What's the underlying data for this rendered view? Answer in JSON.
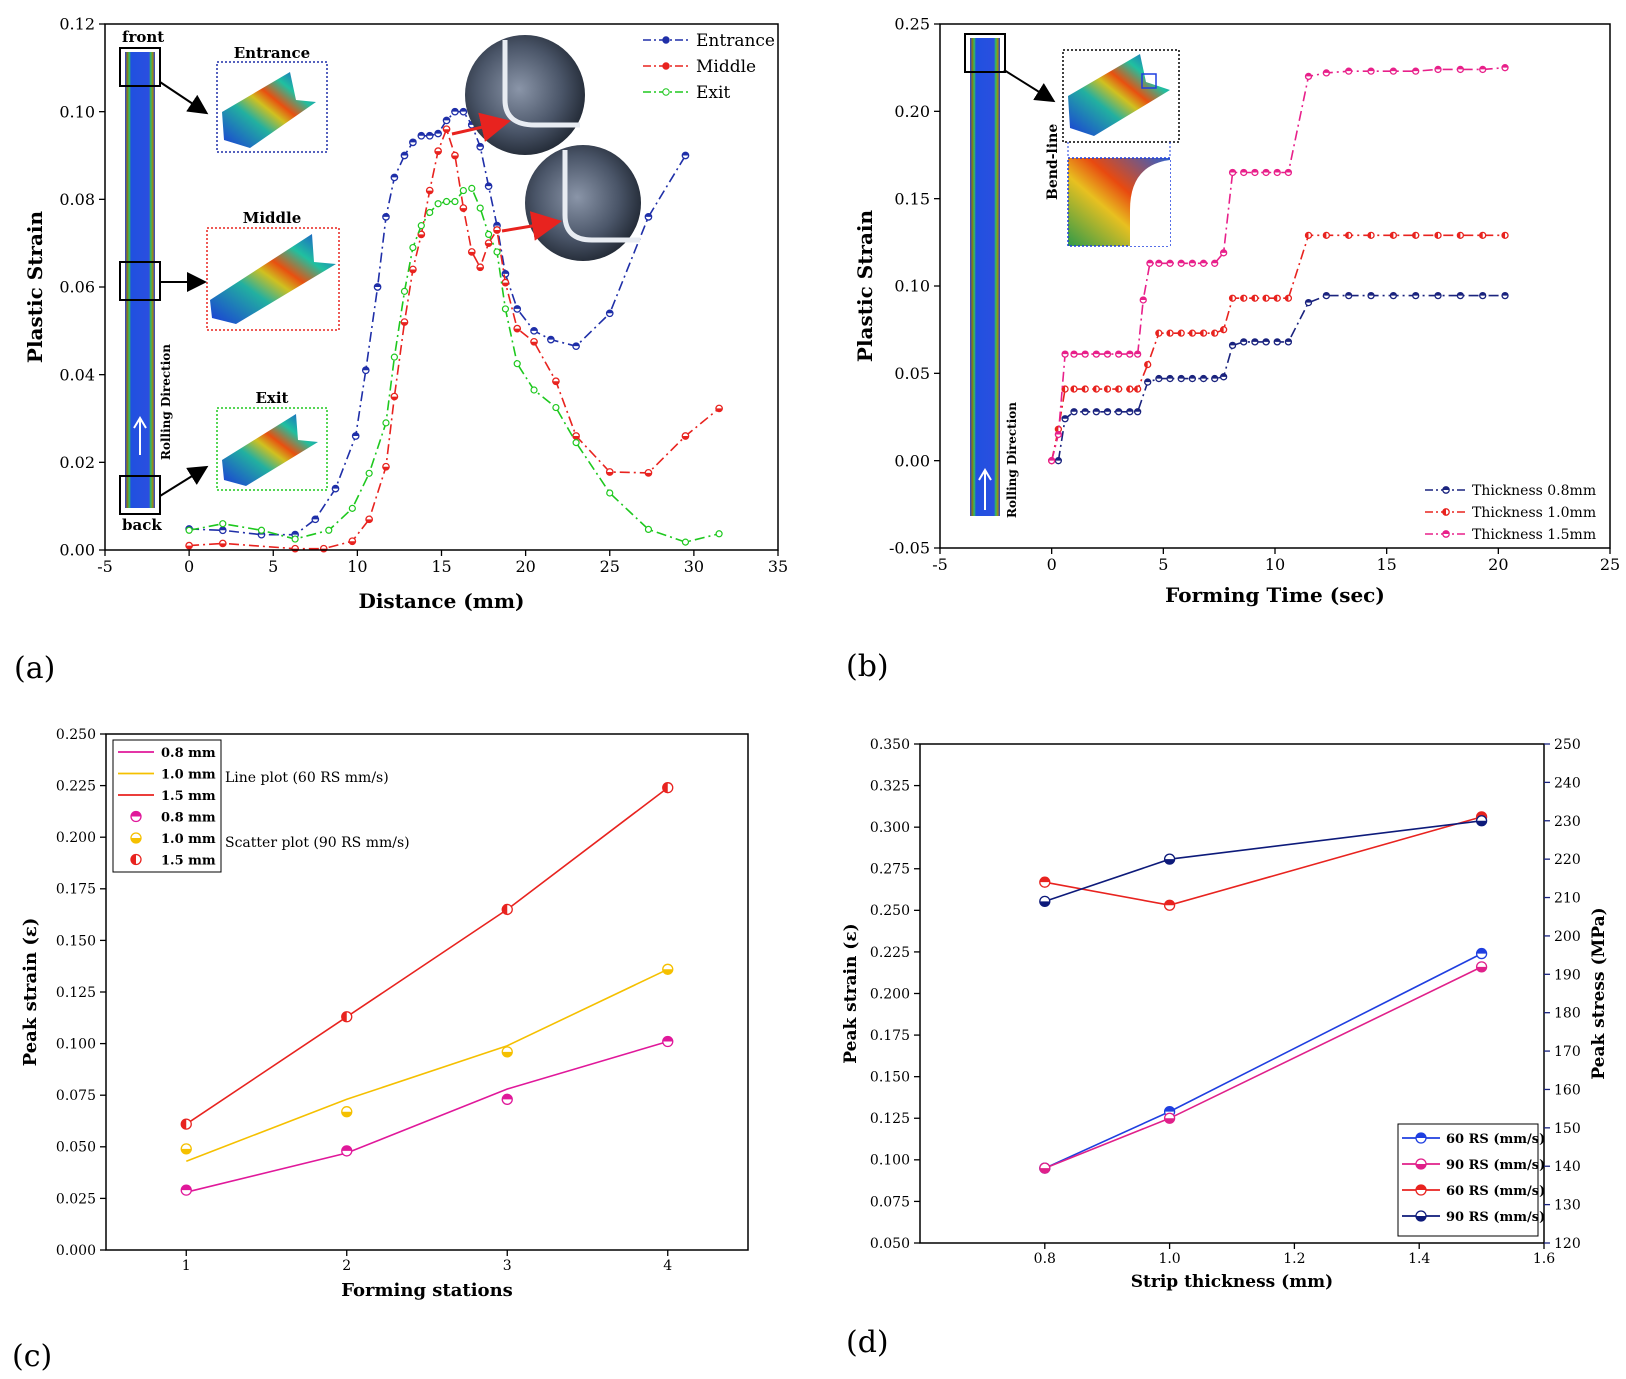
{
  "panel_labels": [
    "(a)",
    "(b)",
    "(c)",
    "(d)"
  ],
  "colors": {
    "entrance": "#1f2fa8",
    "middle": "#e8231f",
    "exit": "#1ec81e",
    "t08": "#1a237e",
    "t10": "#e8231f",
    "t15": "#e8208a",
    "c08": "#e0189a",
    "c10": "#f5c000",
    "c15": "#e8231f",
    "d_blue": "#1f3fe0",
    "d_pink": "#e0208a",
    "d_red": "#e8231f",
    "d_navy": "#0d1a7a"
  },
  "annotations_a": {
    "front": "front",
    "back": "back",
    "rolling": "Rolling Direction",
    "entrance_box": "Entrance",
    "middle_box": "Middle",
    "exit_box": "Exit"
  },
  "annotations_b": {
    "rolling": "Rolling Direction",
    "bendline": "Bend-line"
  },
  "legend_c_notes": {
    "line": "Line plot (60 RS mm/s)",
    "scatter": "Scatter plot (90 RS mm/s)"
  },
  "chart_data": [
    {
      "id": "a",
      "type": "line",
      "xlabel": "Distance (mm)",
      "ylabel": "Plastic Strain",
      "xlim": [
        -5,
        35
      ],
      "ylim": [
        0,
        0.12
      ],
      "xticks": [
        "-5",
        "0",
        "5",
        "10",
        "15",
        "20",
        "25",
        "30",
        "35"
      ],
      "yticks": [
        "0.00",
        "0.02",
        "0.04",
        "0.06",
        "0.08",
        "0.10",
        "0.12"
      ],
      "series": [
        {
          "name": "Entrance",
          "x": [
            0,
            2,
            4.3,
            6.3,
            7.5,
            8.7,
            9.9,
            10.5,
            11.2,
            11.7,
            12.2,
            12.8,
            13.3,
            13.8,
            14.3,
            14.8,
            15.3,
            15.8,
            16.3,
            16.8,
            17.3,
            17.8,
            18.3,
            18.8,
            19.5,
            20.5,
            21.5,
            23,
            25,
            27.3,
            29.5
          ],
          "y": [
            0.0048,
            0.0045,
            0.0035,
            0.0035,
            0.007,
            0.014,
            0.026,
            0.041,
            0.06,
            0.076,
            0.085,
            0.09,
            0.093,
            0.0945,
            0.0945,
            0.095,
            0.098,
            0.1,
            0.1,
            0.097,
            0.092,
            0.083,
            0.074,
            0.063,
            0.055,
            0.05,
            0.048,
            0.0465,
            0.054,
            0.076,
            0.09
          ]
        },
        {
          "name": "Middle",
          "x": [
            0,
            2,
            6.3,
            8,
            9.7,
            10.7,
            11.7,
            12.2,
            12.8,
            13.3,
            13.8,
            14.3,
            14.8,
            15.3,
            15.8,
            16.3,
            16.8,
            17.3,
            17.8,
            18.3,
            18.8,
            19.5,
            20.5,
            21.8,
            23,
            25,
            27.3,
            29.5,
            31.5
          ],
          "y": [
            0.001,
            0.0015,
            0.0003,
            0.0003,
            0.002,
            0.007,
            0.019,
            0.035,
            0.052,
            0.064,
            0.072,
            0.082,
            0.091,
            0.096,
            0.09,
            0.078,
            0.068,
            0.0645,
            0.07,
            0.073,
            0.061,
            0.0505,
            0.0475,
            0.0385,
            0.026,
            0.0178,
            0.0176,
            0.026,
            0.0323
          ]
        },
        {
          "name": "Exit",
          "x": [
            0,
            2,
            4.3,
            6.3,
            8.3,
            9.7,
            10.7,
            11.7,
            12.2,
            12.8,
            13.3,
            13.8,
            14.3,
            14.8,
            15.3,
            15.8,
            16.3,
            16.8,
            17.3,
            17.8,
            18.3,
            18.8,
            19.5,
            20.5,
            21.8,
            23,
            25,
            27.3,
            29.5,
            31.5
          ],
          "y": [
            0.0045,
            0.006,
            0.0045,
            0.0025,
            0.0045,
            0.0095,
            0.0175,
            0.029,
            0.044,
            0.059,
            0.069,
            0.074,
            0.077,
            0.079,
            0.0795,
            0.0795,
            0.082,
            0.0825,
            0.078,
            0.072,
            0.068,
            0.055,
            0.0425,
            0.0365,
            0.0325,
            0.0245,
            0.013,
            0.0047,
            0.0018,
            0.0037
          ]
        }
      ]
    },
    {
      "id": "b",
      "type": "line",
      "xlabel": "Forming Time (sec)",
      "ylabel": "Plastic Strain",
      "xlim": [
        -5,
        25
      ],
      "ylim": [
        -0.05,
        0.25
      ],
      "xticks": [
        "-5",
        "0",
        "5",
        "10",
        "15",
        "20",
        "25"
      ],
      "yticks": [
        "-0.05",
        "0.00",
        "0.05",
        "0.10",
        "0.15",
        "0.20",
        "0.25"
      ],
      "series": [
        {
          "name": "Thickness 0.8mm",
          "x": [
            0.3,
            0.6,
            1,
            1.5,
            2,
            2.5,
            3,
            3.5,
            3.85,
            4.3,
            4.8,
            5.3,
            5.8,
            6.3,
            6.8,
            7.3,
            7.7,
            8.1,
            8.6,
            9.1,
            9.6,
            10.1,
            10.6,
            11.5,
            12.3,
            13.3,
            14.3,
            15.3,
            16.3,
            17.3,
            18.3,
            19.3,
            20.3
          ],
          "y": [
            0,
            0.024,
            0.028,
            0.028,
            0.028,
            0.028,
            0.028,
            0.028,
            0.028,
            0.045,
            0.047,
            0.047,
            0.047,
            0.047,
            0.047,
            0.047,
            0.048,
            0.066,
            0.068,
            0.068,
            0.068,
            0.068,
            0.068,
            0.0905,
            0.0945,
            0.0945,
            0.0945,
            0.0945,
            0.0945,
            0.0945,
            0.0945,
            0.0945,
            0.0945
          ]
        },
        {
          "name": "Thickness 1.0mm",
          "x": [
            0,
            0.3,
            0.6,
            1,
            1.5,
            2,
            2.5,
            3,
            3.5,
            3.85,
            4.3,
            4.8,
            5.3,
            5.8,
            6.3,
            6.8,
            7.3,
            7.7,
            8.1,
            8.6,
            9.1,
            9.6,
            10.1,
            10.6,
            11.5,
            12.3,
            13.3,
            14.3,
            15.3,
            16.3,
            17.3,
            18.3,
            19.3,
            20.3
          ],
          "y": [
            0,
            0.018,
            0.041,
            0.041,
            0.041,
            0.041,
            0.041,
            0.041,
            0.041,
            0.041,
            0.055,
            0.073,
            0.073,
            0.073,
            0.073,
            0.073,
            0.073,
            0.075,
            0.093,
            0.093,
            0.093,
            0.093,
            0.093,
            0.093,
            0.129,
            0.129,
            0.129,
            0.129,
            0.129,
            0.129,
            0.129,
            0.129,
            0.129,
            0.129
          ]
        },
        {
          "name": "Thickness 1.5mm",
          "x": [
            0,
            0.3,
            0.6,
            1,
            1.5,
            2,
            2.5,
            3,
            3.5,
            3.85,
            4.1,
            4.4,
            4.8,
            5.3,
            5.8,
            6.3,
            6.8,
            7.3,
            7.7,
            8.1,
            8.6,
            9.1,
            9.6,
            10.1,
            10.6,
            11.5,
            12.3,
            13.3,
            14.3,
            15.3,
            16.3,
            17.3,
            18.3,
            19.3,
            20.3
          ],
          "y": [
            0,
            0.015,
            0.061,
            0.061,
            0.061,
            0.061,
            0.061,
            0.061,
            0.061,
            0.061,
            0.092,
            0.113,
            0.113,
            0.113,
            0.113,
            0.113,
            0.113,
            0.113,
            0.119,
            0.165,
            0.165,
            0.165,
            0.165,
            0.165,
            0.165,
            0.22,
            0.222,
            0.223,
            0.223,
            0.223,
            0.223,
            0.224,
            0.224,
            0.224,
            0.225
          ]
        }
      ]
    },
    {
      "id": "c",
      "type": "line",
      "xlabel": "Forming stations",
      "ylabel": "Peak strain (ε)",
      "xlim": [
        0.5,
        4.5
      ],
      "ylim": [
        0,
        0.25
      ],
      "xticks": [
        "1",
        "2",
        "3",
        "4"
      ],
      "yticks": [
        "0.000",
        "0.025",
        "0.050",
        "0.075",
        "0.100",
        "0.125",
        "0.150",
        "0.175",
        "0.200",
        "0.225",
        "0.250"
      ],
      "categories": [
        1,
        2,
        3,
        4
      ],
      "series": [
        {
          "name": "0.8 mm",
          "kind": "line",
          "values": [
            0.028,
            0.047,
            0.078,
            0.101
          ]
        },
        {
          "name": "1.0 mm",
          "kind": "line",
          "values": [
            0.043,
            0.073,
            0.099,
            0.136
          ]
        },
        {
          "name": "1.5 mm",
          "kind": "line",
          "values": [
            0.061,
            0.113,
            0.165,
            0.224
          ]
        },
        {
          "name": "0.8 mm",
          "kind": "scatter",
          "values": [
            0.029,
            0.048,
            0.073,
            0.101
          ]
        },
        {
          "name": "1.0 mm",
          "kind": "scatter",
          "values": [
            0.049,
            0.067,
            0.096,
            0.136
          ]
        },
        {
          "name": "1.5 mm",
          "kind": "scatter",
          "values": [
            0.061,
            0.113,
            0.165,
            0.224
          ]
        }
      ]
    },
    {
      "id": "d",
      "type": "line",
      "xlabel": "Strip thickness (mm)",
      "ylabel": "Peak strain (ε)",
      "y2label": "Peak stress (MPa)",
      "xlim": [
        0.6,
        1.6
      ],
      "ylim": [
        0.05,
        0.35
      ],
      "y2lim": [
        120,
        250
      ],
      "xticks": [
        "0.8",
        "1.0",
        "1.2",
        "1.4",
        "1.6"
      ],
      "yticks": [
        "0.050",
        "0.075",
        "0.100",
        "0.125",
        "0.150",
        "0.175",
        "0.200",
        "0.225",
        "0.250",
        "0.275",
        "0.300",
        "0.325",
        "0.350"
      ],
      "y2ticks": [
        "120",
        "130",
        "140",
        "150",
        "160",
        "170",
        "180",
        "190",
        "200",
        "210",
        "220",
        "230",
        "240",
        "250"
      ],
      "x": [
        0.8,
        1.0,
        1.5
      ],
      "series": [
        {
          "name": "60 RS (mm/s)",
          "axis": "left",
          "values": [
            0.095,
            0.129,
            0.224
          ]
        },
        {
          "name": "90 RS (mm/s)",
          "axis": "left",
          "values": [
            0.095,
            0.125,
            0.216
          ]
        },
        {
          "name": "60 RS (mm/s)",
          "axis": "right",
          "values": [
            214,
            208,
            231
          ]
        },
        {
          "name": "90 RS (mm/s)",
          "axis": "right",
          "values": [
            209,
            220,
            230
          ]
        }
      ]
    }
  ]
}
